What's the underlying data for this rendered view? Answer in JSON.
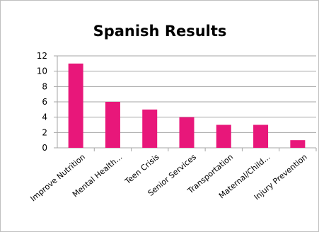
{
  "chart_data": {
    "type": "bar",
    "title": "Spanish Results",
    "xlabel": "",
    "ylabel": "",
    "categories": [
      "Improve Nutrition",
      "Mental Health...",
      "Teen Crisis",
      "Senior Services",
      "Transportation",
      "Maternal/Child...",
      "Injury Prevention"
    ],
    "values": [
      11,
      6,
      5,
      4,
      3,
      3,
      1
    ],
    "ylim": [
      0,
      12
    ],
    "yticks": [
      0,
      2,
      4,
      6,
      8,
      10,
      12
    ],
    "grid": true,
    "legend": "none",
    "bar_color": "#e8177a",
    "grid_color": "#a6a6a6"
  }
}
